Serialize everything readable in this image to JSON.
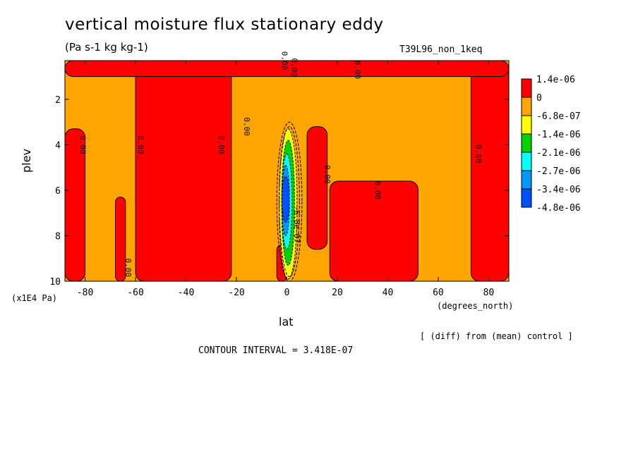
{
  "figure": {
    "title": "vertical moisture flux stationary eddy",
    "units": "(Pa s-1 kg kg-1)",
    "dataset": "T39L96_non_1keq",
    "diff_note": "[ (diff) from (mean) control ]",
    "contour_interval": "CONTOUR INTERVAL = 3.418E-07"
  },
  "chart_data": {
    "type": "heatmap",
    "subtype": "filled contour",
    "title": "vertical moisture flux stationary eddy",
    "xlabel": "lat",
    "x_unit": "(degrees_north)",
    "ylabel": "plev",
    "y_unit": "(x1E4 Pa)",
    "xlim": [
      -88,
      88
    ],
    "ylim": [
      10,
      0.3
    ],
    "x_ticks": [
      -80,
      -60,
      -40,
      -20,
      0,
      20,
      40,
      60,
      80
    ],
    "y_ticks": [
      2,
      4,
      6,
      8,
      10
    ],
    "colorbar": {
      "labels": [
        "1.4e-06",
        "0",
        "-6.8e-07",
        "-1.4e-06",
        "-2.1e-06",
        "-2.7e-06",
        "-3.4e-06",
        "-4.8e-06"
      ],
      "colors": [
        "#ff0000",
        "#ffa500",
        "#ffff00",
        "#00d400",
        "#00ffff",
        "#0096ff",
        "#0050ff"
      ]
    },
    "regions": [
      {
        "level": "positive",
        "color": "#ff0000",
        "lat": [
          -88,
          -80
        ],
        "plev": [
          3.3,
          10
        ]
      },
      {
        "level": "positive",
        "color": "#ff0000",
        "lat": [
          -68,
          -64
        ],
        "plev": [
          6.3,
          10
        ]
      },
      {
        "level": "positive",
        "color": "#ff0000",
        "lat": [
          -60,
          -22
        ],
        "plev": [
          0.3,
          10
        ]
      },
      {
        "level": "positive",
        "color": "#ff0000",
        "lat": [
          -4,
          0
        ],
        "plev": [
          8.4,
          10
        ]
      },
      {
        "level": "positive",
        "color": "#ff0000",
        "lat": [
          8,
          16
        ],
        "plev": [
          3.2,
          8.6
        ]
      },
      {
        "level": "positive",
        "color": "#ff0000",
        "lat": [
          17,
          52
        ],
        "plev": [
          5.6,
          10
        ]
      },
      {
        "level": "positive",
        "color": "#ff0000",
        "lat": [
          73,
          88
        ],
        "plev": [
          0.5,
          10
        ]
      },
      {
        "level": "positive",
        "color": "#ff0000",
        "lat": [
          -88,
          88
        ],
        "plev": [
          0.3,
          1.0
        ]
      },
      {
        "level": "negative",
        "color": "#ffff00",
        "lat": [
          -3,
          4
        ],
        "plev": [
          3.3,
          9.9
        ]
      },
      {
        "level": "negative",
        "color": "#00d400",
        "lat": [
          -2,
          3
        ],
        "plev": [
          3.8,
          9.3
        ]
      },
      {
        "level": "negative",
        "color": "#00ffff",
        "lat": [
          -2,
          2
        ],
        "plev": [
          4.4,
          8.6
        ]
      },
      {
        "level": "negative",
        "color": "#0096ff",
        "lat": [
          -2,
          1
        ],
        "plev": [
          4.9,
          8.0
        ]
      },
      {
        "level": "negative",
        "color": "#0050ff",
        "lat": [
          -2,
          1
        ],
        "plev": [
          5.4,
          7.4
        ]
      }
    ],
    "contour_labels": [
      {
        "text": "0.00",
        "lat": -82,
        "plev": 4.0
      },
      {
        "text": "0.00",
        "lat": -64,
        "plev": 9.4
      },
      {
        "text": "0.00",
        "lat": -59,
        "plev": 4.0
      },
      {
        "text": "0.00",
        "lat": -27,
        "plev": 4.0
      },
      {
        "text": "0.00",
        "lat": -17,
        "plev": 3.2
      },
      {
        "text": "0.00",
        "lat": -2,
        "plev": 0.3
      },
      {
        "text": "0.00",
        "lat": 2,
        "plev": 0.6
      },
      {
        "text": "0.00",
        "lat": 27,
        "plev": 0.7
      },
      {
        "text": "0.00",
        "lat": 15,
        "plev": 5.3
      },
      {
        "text": "0.00",
        "lat": 35,
        "plev": 6.0
      },
      {
        "text": "0.00",
        "lat": 75,
        "plev": 4.4
      },
      {
        "text": "-6.8e-07",
        "lat": 3,
        "plev": 7.5
      }
    ]
  }
}
